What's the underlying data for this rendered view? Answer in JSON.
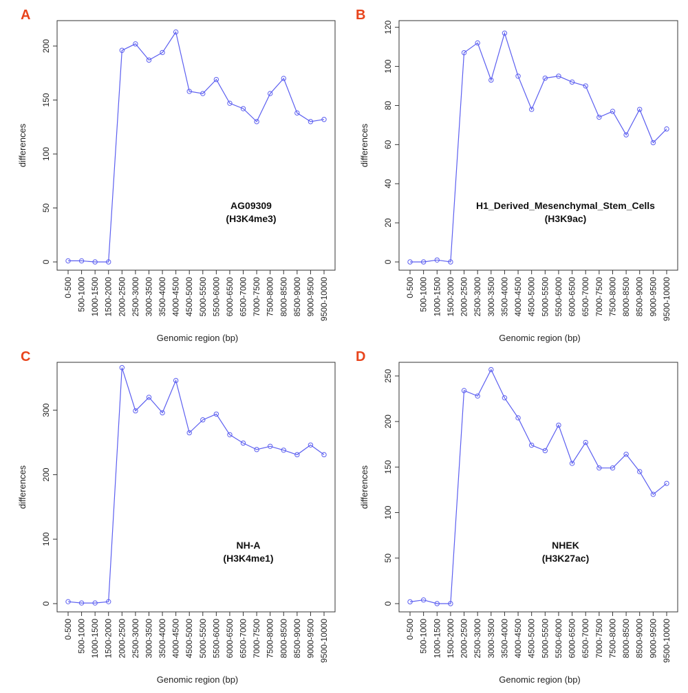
{
  "chart_data": [
    {
      "type": "line",
      "panel_label": "A",
      "annotation": [
        "AG09309",
        "(H3K4me3)"
      ],
      "xlabel": "Genomic region (bp)",
      "ylabel": "differences",
      "ylim": [
        0,
        220
      ],
      "yticks": [
        0,
        50,
        100,
        150,
        200
      ],
      "categories": [
        "0-500",
        "500-1000",
        "1000-1500",
        "1500-2000",
        "2000-2500",
        "2500-3000",
        "3000-3500",
        "3500-4000",
        "4000-4500",
        "4500-5000",
        "5000-5500",
        "5500-6000",
        "6000-6500",
        "6500-7000",
        "7000-7500",
        "7500-8000",
        "8000-8500",
        "8500-9000",
        "9000-9500",
        "9500-10000"
      ],
      "values": [
        1,
        1,
        0,
        0,
        196,
        202,
        187,
        194,
        213,
        158,
        156,
        169,
        147,
        142,
        130,
        156,
        170,
        138,
        130,
        132
      ],
      "line_color": "#5b5ef0"
    },
    {
      "type": "line",
      "panel_label": "B",
      "annotation": [
        "H1_Derived_Mesenchymal_Stem_Cells",
        "(H3K9ac)"
      ],
      "xlabel": "Genomic region (bp)",
      "ylabel": "differences",
      "ylim": [
        0,
        120
      ],
      "yticks": [
        0,
        20,
        40,
        60,
        80,
        100,
        120
      ],
      "categories": [
        "0-500",
        "500-1000",
        "1000-1500",
        "1500-2000",
        "2000-2500",
        "2500-3000",
        "3000-3500",
        "3500-4000",
        "4000-4500",
        "4500-5000",
        "5000-5500",
        "5500-6000",
        "6000-6500",
        "6500-7000",
        "7000-7500",
        "7500-8000",
        "8000-8500",
        "8500-9000",
        "9000-9500",
        "9500-10000"
      ],
      "values": [
        0,
        0,
        1,
        0,
        107,
        112,
        93,
        117,
        95,
        78,
        94,
        95,
        92,
        90,
        74,
        77,
        65,
        78,
        61,
        68
      ],
      "line_color": "#5b5ef0"
    },
    {
      "type": "line",
      "panel_label": "C",
      "annotation": [
        "NH-A",
        "(H3K4me1)"
      ],
      "xlabel": "Genomic region (bp)",
      "ylabel": "differences",
      "ylim": [
        0,
        365
      ],
      "yticks": [
        0,
        100,
        200,
        300
      ],
      "categories": [
        "0-500",
        "500-1000",
        "1000-1500",
        "1500-2000",
        "2000-2500",
        "2500-3000",
        "3000-3500",
        "3500-4000",
        "4000-4500",
        "4500-5000",
        "5000-5500",
        "5500-6000",
        "6000-6500",
        "6500-7000",
        "7000-7500",
        "7500-8000",
        "8000-8500",
        "8500-9000",
        "9000-9500",
        "9500-10000"
      ],
      "values": [
        3,
        1,
        1,
        3,
        366,
        299,
        320,
        296,
        346,
        265,
        285,
        294,
        262,
        249,
        239,
        244,
        238,
        231,
        246,
        231
      ],
      "line_color": "#5b5ef0"
    },
    {
      "type": "line",
      "panel_label": "D",
      "annotation": [
        "NHEK",
        "(H3K27ac)"
      ],
      "xlabel": "Genomic region (bp)",
      "ylabel": "differences",
      "ylim": [
        0,
        255
      ],
      "yticks": [
        0,
        50,
        100,
        150,
        200,
        250
      ],
      "categories": [
        "0-500",
        "500-1000",
        "1000-1500",
        "1500-2000",
        "2000-2500",
        "2500-3000",
        "3000-3500",
        "3500-4000",
        "4000-4500",
        "4500-5000",
        "5000-5500",
        "5500-6000",
        "6000-6500",
        "6500-7000",
        "7000-7500",
        "7500-8000",
        "8000-8500",
        "8500-9000",
        "9000-9500",
        "9500-10000"
      ],
      "values": [
        2,
        4,
        0,
        0,
        234,
        228,
        257,
        226,
        204,
        174,
        168,
        196,
        154,
        177,
        149,
        149,
        164,
        145,
        120,
        132
      ],
      "line_color": "#5b5ef0"
    }
  ]
}
